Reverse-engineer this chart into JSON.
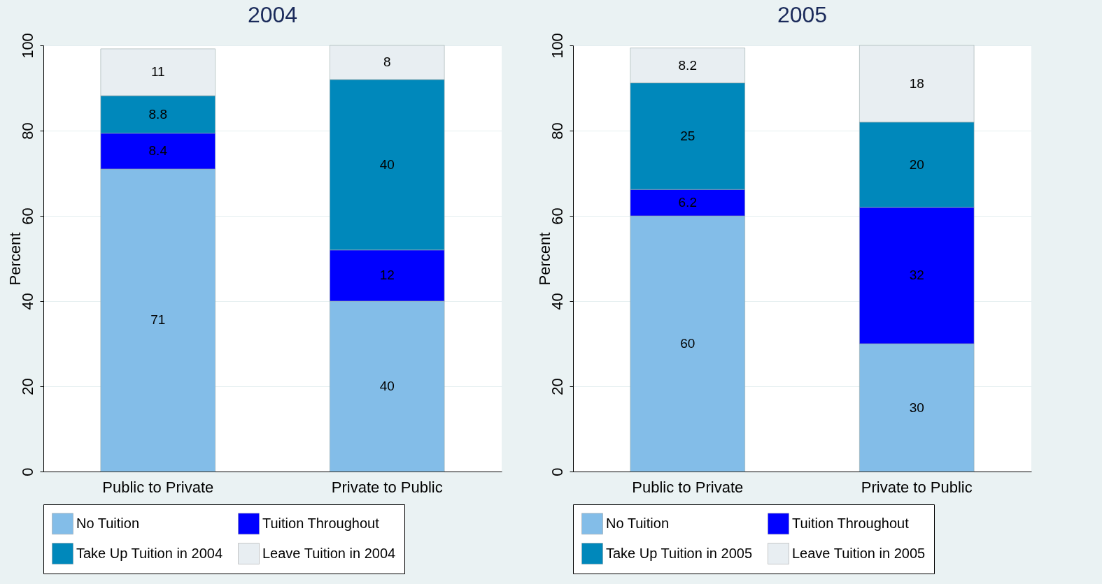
{
  "chart_data": [
    {
      "type": "bar",
      "title": "2004",
      "ylabel": "Percent",
      "categories": [
        "Public to Private",
        "Private to Public"
      ],
      "stacked": true,
      "data_labels": true,
      "ylim": [
        0,
        100
      ],
      "yticks": [
        0,
        20,
        40,
        60,
        80,
        100
      ],
      "grid": "y",
      "legend": "bottom",
      "series": [
        {
          "name": "No Tuition",
          "color": "#83bde8",
          "values": [
            71,
            40
          ]
        },
        {
          "name": "Tuition Throughout",
          "color": "#0000ff",
          "values": [
            8.4,
            12
          ]
        },
        {
          "name": "Take Up Tuition in 2004",
          "color": "#0088bb",
          "values": [
            8.8,
            40
          ]
        },
        {
          "name": "Leave Tuition in 2004",
          "color": "#e8eef2",
          "values": [
            11,
            8
          ]
        }
      ]
    },
    {
      "type": "bar",
      "title": "2005",
      "ylabel": "Percent",
      "categories": [
        "Public to Private",
        "Private to Public"
      ],
      "stacked": true,
      "data_labels": true,
      "ylim": [
        0,
        100
      ],
      "yticks": [
        0,
        20,
        40,
        60,
        80,
        100
      ],
      "grid": "y",
      "legend": "bottom",
      "series": [
        {
          "name": "No Tuition",
          "color": "#83bde8",
          "values": [
            60,
            30
          ]
        },
        {
          "name": "Tuition Throughout",
          "color": "#0000ff",
          "values": [
            6.2,
            32
          ]
        },
        {
          "name": "Take Up Tuition in 2005",
          "color": "#0088bb",
          "values": [
            25,
            20
          ]
        },
        {
          "name": "Leave Tuition in 2005",
          "color": "#e8eef2",
          "values": [
            8.2,
            18
          ]
        }
      ]
    }
  ]
}
